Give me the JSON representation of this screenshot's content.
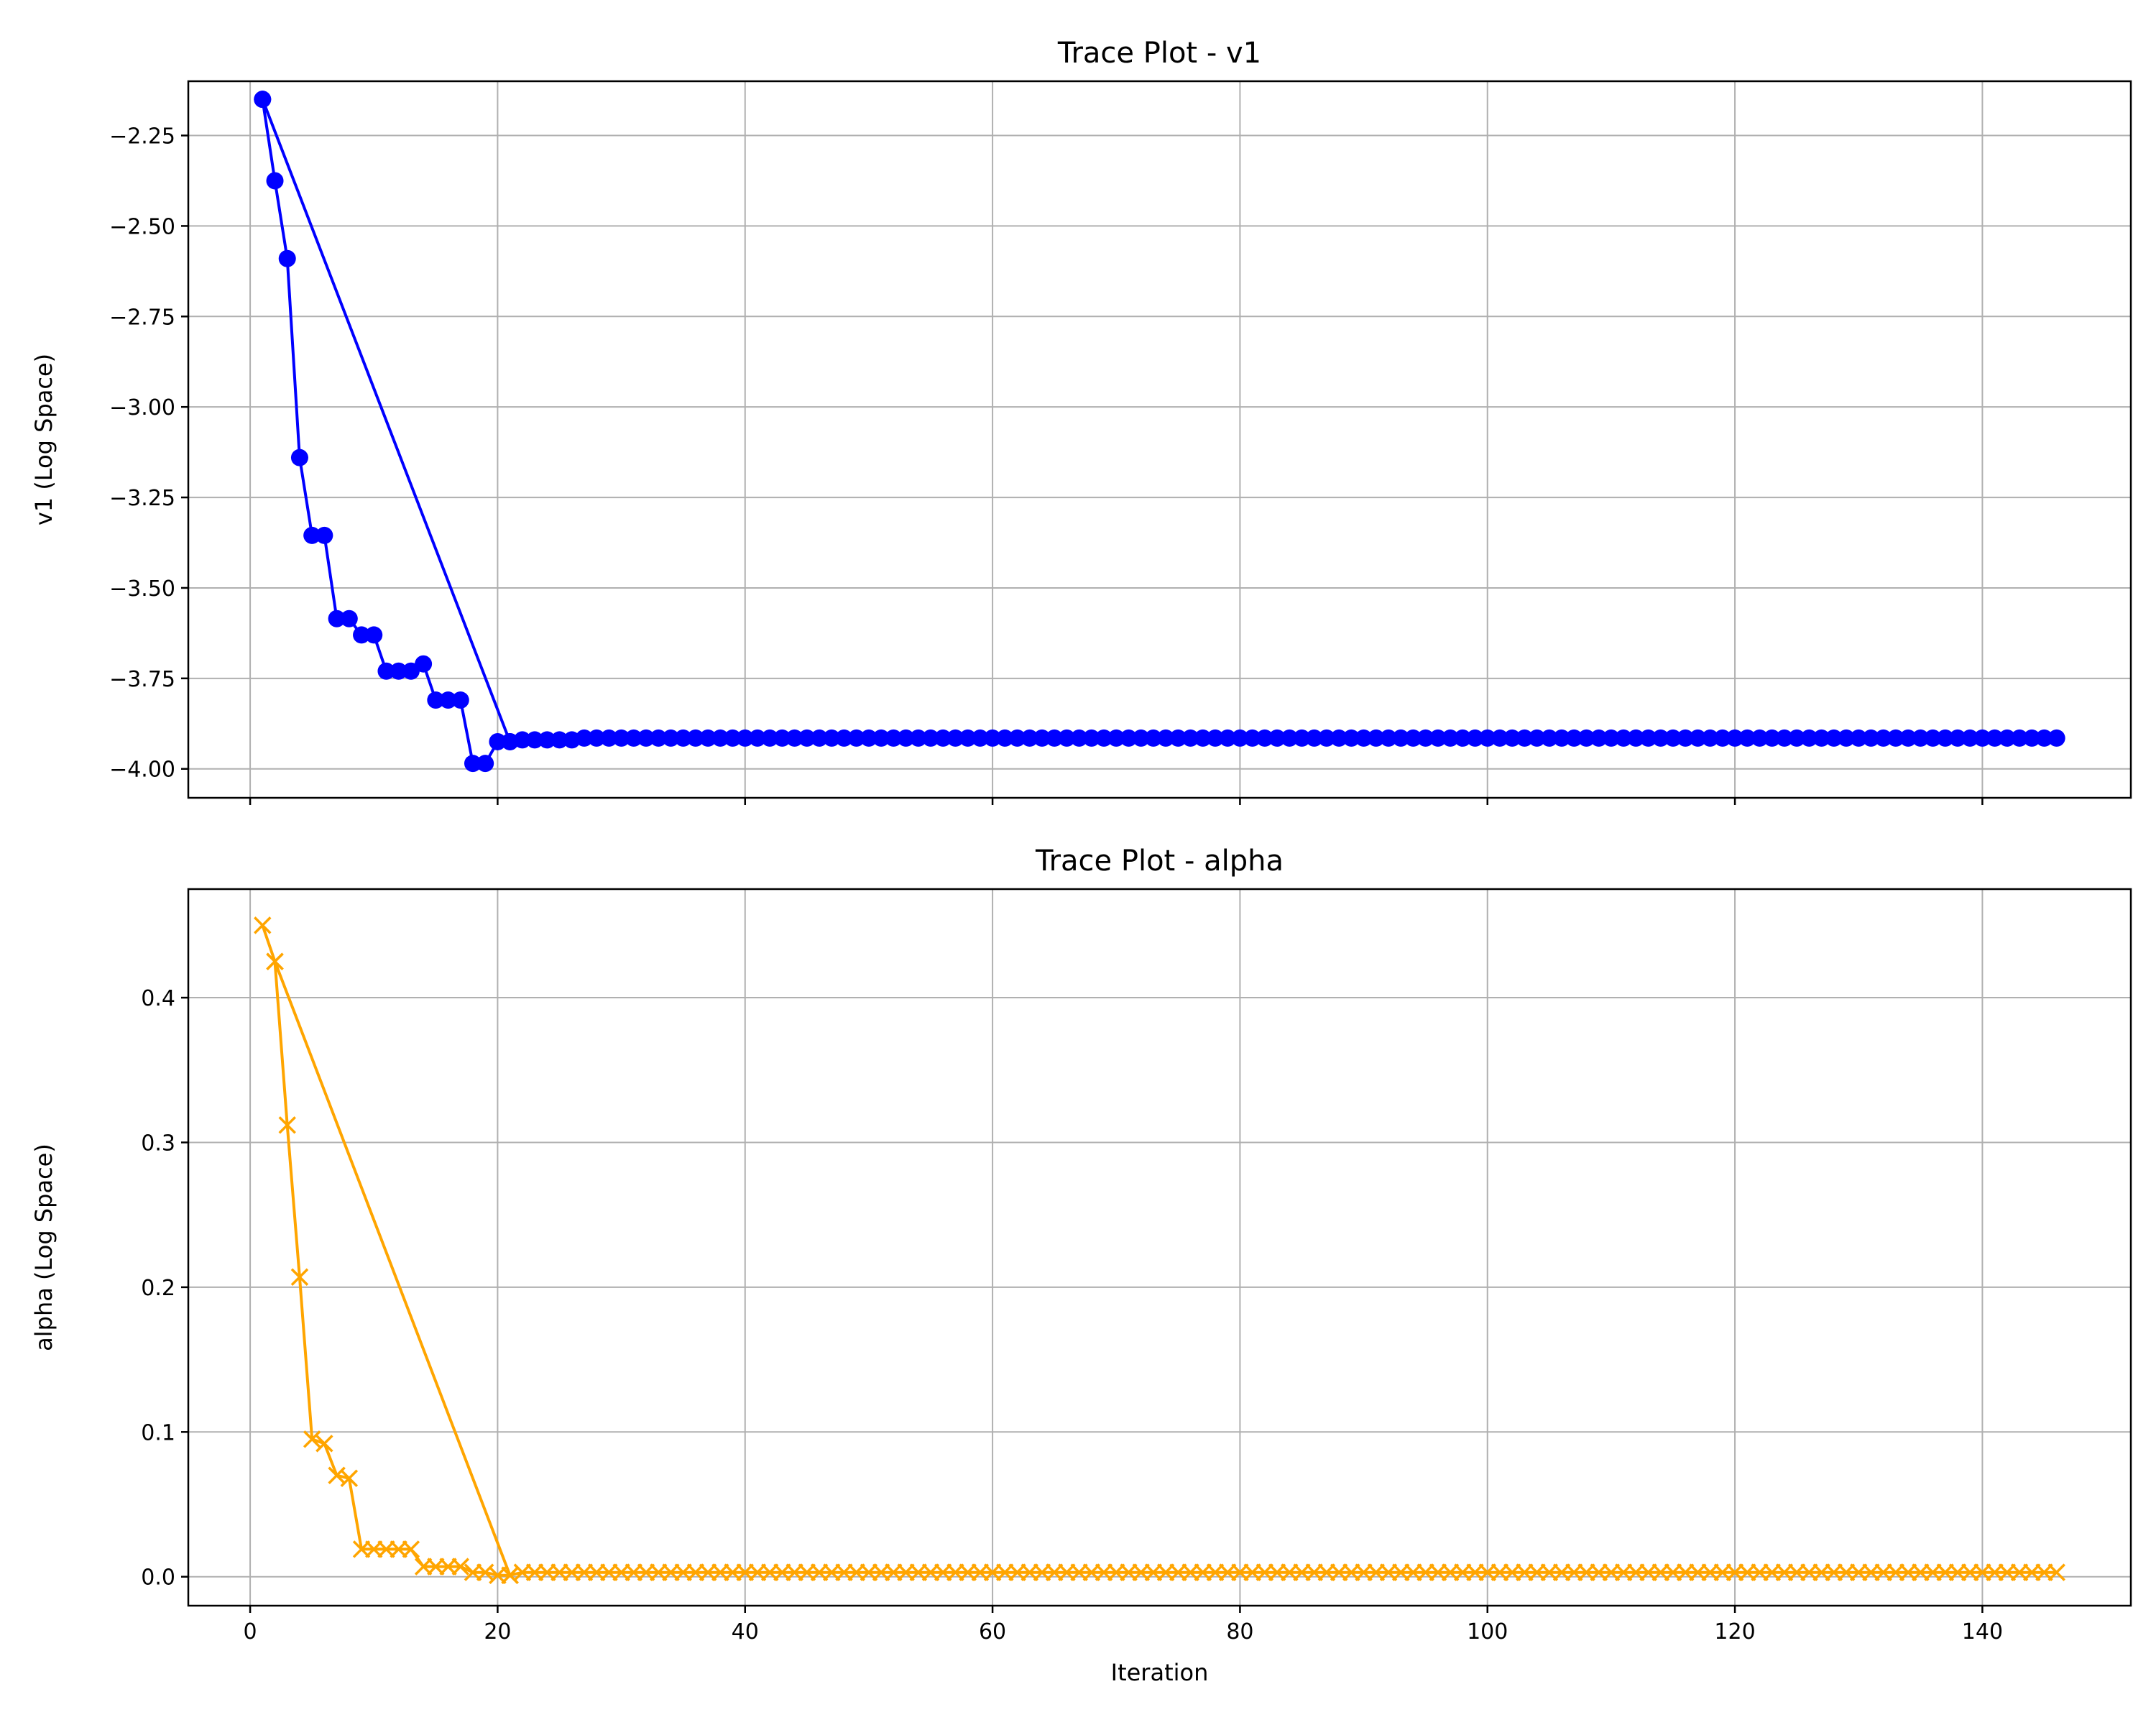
{
  "chart_data": [
    {
      "type": "line",
      "title": "Trace Plot - v1",
      "xlabel": "",
      "ylabel": "v1 (Log Space)",
      "xlim": [
        -5,
        152
      ],
      "ylim": [
        -4.08,
        -2.1
      ],
      "xticks": [
        0,
        20,
        40,
        60,
        80,
        100,
        120,
        140
      ],
      "show_xtick_labels": false,
      "yticks": [
        -4.0,
        -3.75,
        -3.5,
        -3.25,
        -3.0,
        -2.75,
        -2.5,
        -2.25
      ],
      "ytick_labels": [
        "−4.00",
        "−3.75",
        "−3.50",
        "−3.25",
        "−3.00",
        "−2.75",
        "−2.50",
        "−2.25"
      ],
      "grid": true,
      "marker": "circle",
      "color": "#0000ff",
      "series": [
        {
          "x": [
            1,
            2,
            3,
            4,
            5,
            6,
            7,
            8,
            9,
            10,
            11,
            12,
            13,
            14,
            15,
            16,
            17,
            18,
            19,
            20,
            21,
            1,
            21,
            22,
            23,
            24,
            25,
            26,
            27
          ],
          "y": [
            -2.15,
            -2.375,
            -2.59,
            -3.14,
            -3.355,
            -3.355,
            -3.585,
            -3.585,
            -3.63,
            -3.63,
            -3.73,
            -3.73,
            -3.73,
            -3.71,
            -3.81,
            -3.81,
            -3.81,
            -3.985,
            -3.985,
            -3.925,
            -3.925,
            -2.15,
            -3.925,
            -3.92,
            -3.92,
            -3.92,
            -3.92,
            -3.92,
            -3.915
          ],
          "plateau": {
            "from": 28,
            "to": 146,
            "value": -3.915
          }
        }
      ]
    },
    {
      "type": "line",
      "title": "Trace Plot - alpha",
      "xlabel": "Iteration",
      "ylabel": "alpha (Log Space)",
      "xlim": [
        -5,
        152
      ],
      "ylim": [
        -0.02,
        0.475
      ],
      "xticks": [
        0,
        20,
        40,
        60,
        80,
        100,
        120,
        140
      ],
      "xtick_labels": [
        "0",
        "20",
        "40",
        "60",
        "80",
        "100",
        "120",
        "140"
      ],
      "show_xtick_labels": true,
      "yticks": [
        0.0,
        0.1,
        0.2,
        0.3,
        0.4
      ],
      "ytick_labels": [
        "0.0",
        "0.1",
        "0.2",
        "0.3",
        "0.4"
      ],
      "grid": true,
      "marker": "x",
      "color": "#ffa500",
      "series": [
        {
          "x": [
            1,
            2,
            3,
            4,
            5,
            6,
            7,
            8,
            9,
            10,
            11,
            12,
            13,
            14,
            15,
            16,
            17,
            18,
            19,
            20,
            21,
            2,
            21,
            22,
            23,
            24,
            25,
            26,
            27
          ],
          "y": [
            0.45,
            0.425,
            0.312,
            0.207,
            0.095,
            0.092,
            0.07,
            0.068,
            0.019,
            0.019,
            0.019,
            0.019,
            0.019,
            0.007,
            0.007,
            0.007,
            0.007,
            0.003,
            0.003,
            0.001,
            0.001,
            0.425,
            0.001,
            0.003,
            0.003,
            0.003,
            0.003,
            0.003,
            0.003
          ],
          "plateau": {
            "from": 28,
            "to": 146,
            "value": 0.003
          }
        }
      ]
    }
  ]
}
